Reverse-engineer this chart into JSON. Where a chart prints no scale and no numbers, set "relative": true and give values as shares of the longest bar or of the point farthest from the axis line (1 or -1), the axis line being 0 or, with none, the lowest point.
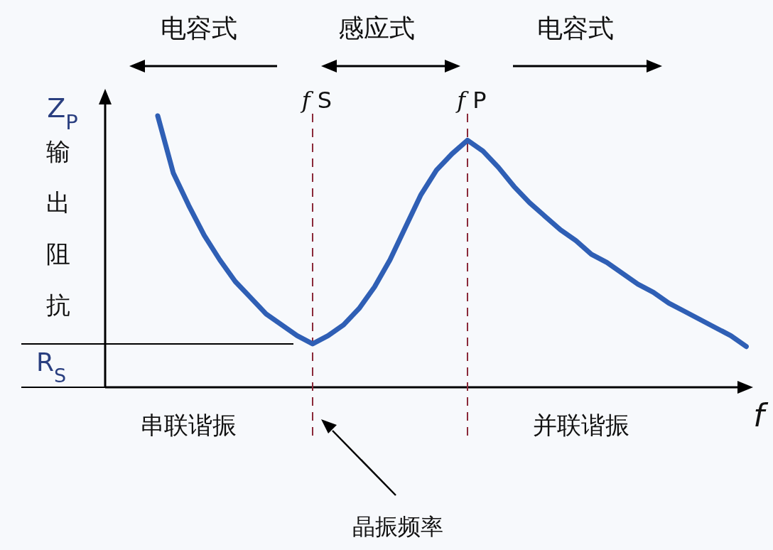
{
  "chart_data": {
    "type": "line",
    "relative": true,
    "xlabel": "f",
    "ylabel": "Z$_{P}$",
    "categories": [
      null,
      null,
      null,
      null,
      null,
      null,
      null,
      null,
      null,
      null,
      null,
      null,
      null,
      null,
      null,
      null,
      null,
      null,
      null,
      null,
      null,
      null,
      null,
      null,
      null,
      null,
      null,
      null,
      null,
      null,
      null,
      null,
      null,
      null,
      null,
      null,
      null,
      null,
      null
    ],
    "series": [
      {
        "color": "#2f5fb5",
        "values": [
          1.0,
          0.79,
          0.67,
          0.56,
          0.47,
          0.39,
          0.33,
          0.27,
          0.23,
          0.19,
          0.16,
          0.19,
          0.23,
          0.29,
          0.37,
          0.47,
          0.59,
          0.71,
          0.8,
          0.86,
          0.91,
          0.87,
          0.81,
          0.74,
          0.68,
          0.63,
          0.58,
          0.54,
          0.49,
          0.46,
          0.42,
          0.38,
          0.35,
          0.31,
          0.28,
          0.25,
          0.22,
          0.19,
          0.15
        ]
      }
    ],
    "ref_lines": [
      {
        "axis": "y",
        "value": 0.16,
        "label": "R$_{S}$",
        "color": "#000000",
        "line_style": "solid"
      }
    ],
    "annotations": [
      "电容式",
      "感应式",
      "电容式",
      "输出阻抗",
      "串联谐振",
      "并联谐振",
      "晶振频率",
      "*f* S",
      "*f* P"
    ]
  }
}
